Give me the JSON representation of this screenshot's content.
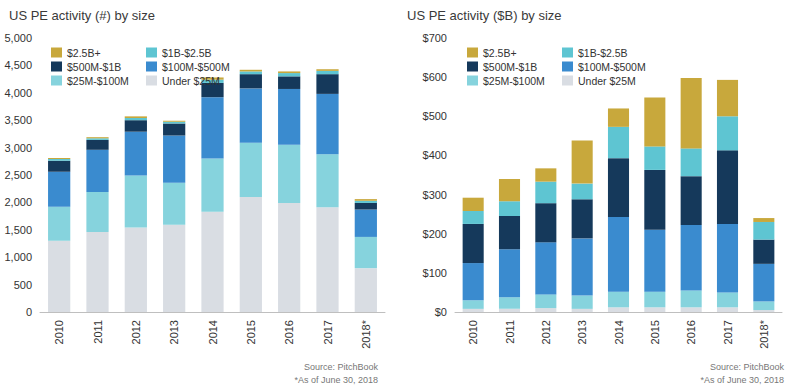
{
  "chart_data": [
    {
      "type": "bar",
      "title": "US PE activity (#) by size",
      "source": "Source: PitchBook",
      "note": "*As of June 30, 2018",
      "categories": [
        "2010",
        "2011",
        "2012",
        "2013",
        "2014",
        "2015",
        "2016",
        "2017",
        "2018*"
      ],
      "series": [
        {
          "name": "Under $25M",
          "color": "#d9dde3",
          "values": [
            1300,
            1460,
            1540,
            1590,
            1830,
            2100,
            1990,
            1910,
            800
          ]
        },
        {
          "name": "$25M-$100M",
          "color": "#86d3dd",
          "values": [
            620,
            730,
            950,
            770,
            970,
            990,
            1060,
            970,
            570
          ]
        },
        {
          "name": "$100M-$500M",
          "color": "#3a8bcf",
          "values": [
            640,
            770,
            800,
            860,
            1120,
            990,
            1020,
            1100,
            500
          ]
        },
        {
          "name": "$500M-$1B",
          "color": "#15395b",
          "values": [
            200,
            180,
            210,
            220,
            260,
            260,
            230,
            360,
            120
          ]
        },
        {
          "name": "$1B-$2.5B",
          "color": "#5ec5d2",
          "values": [
            30,
            30,
            40,
            30,
            60,
            50,
            60,
            60,
            40
          ]
        },
        {
          "name": "$2.5B+",
          "color": "#c8a83c",
          "values": [
            20,
            20,
            30,
            20,
            40,
            30,
            30,
            30,
            30
          ]
        }
      ],
      "ylim": [
        0,
        5000
      ],
      "yticks": [
        0,
        500,
        {
          "value": 1000,
          "label": "1,000"
        },
        {
          "value": 1500,
          "label": "1,500"
        },
        {
          "value": 2000,
          "label": "2,000"
        },
        {
          "value": 2500,
          "label": "2,500"
        },
        {
          "value": 3000,
          "label": "3,000"
        },
        {
          "value": 3500,
          "label": "3,500"
        },
        {
          "value": 4000,
          "label": "4,000"
        },
        {
          "value": 4500,
          "label": "4,500"
        },
        {
          "value": 5000,
          "label": "5,000"
        }
      ],
      "grid": false,
      "stacked": true,
      "legend": "upper left"
    },
    {
      "type": "bar",
      "title": "US PE activity ($B) by size",
      "source": "Source: PitchBook",
      "note": "*As of June 30, 2018",
      "categories": [
        "2010",
        "2011",
        "2012",
        "2013",
        "2014",
        "2015",
        "2016",
        "2017",
        "2018*"
      ],
      "series": [
        {
          "name": "Under $25M",
          "color": "#d9dde3",
          "values": [
            8,
            8,
            10,
            8,
            12,
            12,
            12,
            12,
            5
          ]
        },
        {
          "name": "$25M-$100M",
          "color": "#86d3dd",
          "values": [
            22,
            30,
            35,
            34,
            40,
            40,
            43,
            38,
            22
          ]
        },
        {
          "name": "$100M-$500M",
          "color": "#3a8bcf",
          "values": [
            95,
            122,
            133,
            146,
            191,
            158,
            167,
            175,
            96
          ]
        },
        {
          "name": "$500M-$1B",
          "color": "#15395b",
          "values": [
            100,
            85,
            100,
            100,
            150,
            153,
            125,
            188,
            62
          ]
        },
        {
          "name": "$1B-$2.5B",
          "color": "#5ec5d2",
          "values": [
            33,
            38,
            55,
            40,
            80,
            60,
            71,
            87,
            45
          ]
        },
        {
          "name": "$2.5B+",
          "color": "#c8a83c",
          "values": [
            34,
            57,
            34,
            110,
            47,
            125,
            180,
            93,
            10
          ]
        }
      ],
      "ylim": [
        0,
        700
      ],
      "yticks": [
        {
          "value": 0,
          "label": "$0"
        },
        {
          "value": 100,
          "label": "$100"
        },
        {
          "value": 200,
          "label": "$200"
        },
        {
          "value": 300,
          "label": "$300"
        },
        {
          "value": 400,
          "label": "$400"
        },
        {
          "value": 500,
          "label": "$500"
        },
        {
          "value": 600,
          "label": "$600"
        },
        {
          "value": 700,
          "label": "$700"
        }
      ],
      "grid": false,
      "stacked": true,
      "legend": "upper left"
    }
  ]
}
